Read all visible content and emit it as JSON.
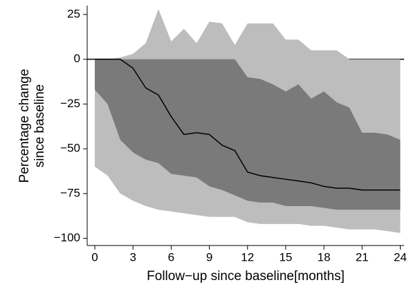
{
  "chart_data": {
    "type": "band-line",
    "xlabel": "Follow−up since baseline[months]",
    "ylabel": [
      "Percentage change",
      "since baseline"
    ],
    "x": [
      0,
      1,
      2,
      3,
      4,
      5,
      6,
      7,
      8,
      9,
      10,
      11,
      12,
      13,
      14,
      15,
      16,
      17,
      18,
      19,
      20,
      21,
      22,
      23,
      24
    ],
    "bands": [
      {
        "color": "#bdbdbd",
        "upper": [
          0,
          0,
          1,
          3,
          9,
          28,
          10,
          17,
          9,
          21,
          20,
          8,
          20,
          20,
          20,
          11,
          11,
          5,
          5,
          5,
          0,
          0,
          0,
          0,
          0
        ],
        "lower": [
          -60,
          -65,
          -75,
          -79,
          -82,
          -84,
          -85,
          -86,
          -87,
          -88,
          -88,
          -88,
          -91,
          -92,
          -92,
          -92,
          -92,
          -93,
          -93,
          -94,
          -95,
          -95,
          -95,
          -96,
          -97
        ]
      },
      {
        "color": "#7a7a7a",
        "upper": [
          0,
          0,
          0,
          0,
          0,
          0,
          0,
          0,
          0,
          0,
          0,
          0,
          -10,
          -11,
          -14,
          -18,
          -14,
          -22,
          -18,
          -24,
          -27,
          -41,
          -41,
          -42,
          -45
        ],
        "lower": [
          -17,
          -25,
          -45,
          -52,
          -56,
          -58,
          -64,
          -65,
          -66,
          -71,
          -73,
          -76,
          -79,
          -80,
          -80,
          -82,
          -82,
          -82,
          -83,
          -84,
          -84,
          -84,
          -84,
          -84,
          -84
        ]
      }
    ],
    "line": {
      "color": "#000000",
      "values": [
        0,
        0,
        0,
        -5,
        -16,
        -20,
        -32,
        -42,
        -41,
        -42,
        -48,
        -51,
        -63,
        -65,
        -66,
        -67,
        -68,
        -69,
        -71,
        -72,
        -72,
        -73,
        -73,
        -73,
        -73
      ]
    },
    "hline": 0,
    "xlim": [
      -0.6,
      24.3
    ],
    "ylim": [
      -104,
      30
    ],
    "xticks": [
      0,
      3,
      6,
      9,
      12,
      15,
      18,
      21,
      24
    ],
    "yticks": [
      {
        "value": -100,
        "label": "−100"
      },
      {
        "value": -75,
        "label": "−75"
      },
      {
        "value": -50,
        "label": "−50"
      },
      {
        "value": -25,
        "label": "−25"
      },
      0,
      25
    ]
  }
}
